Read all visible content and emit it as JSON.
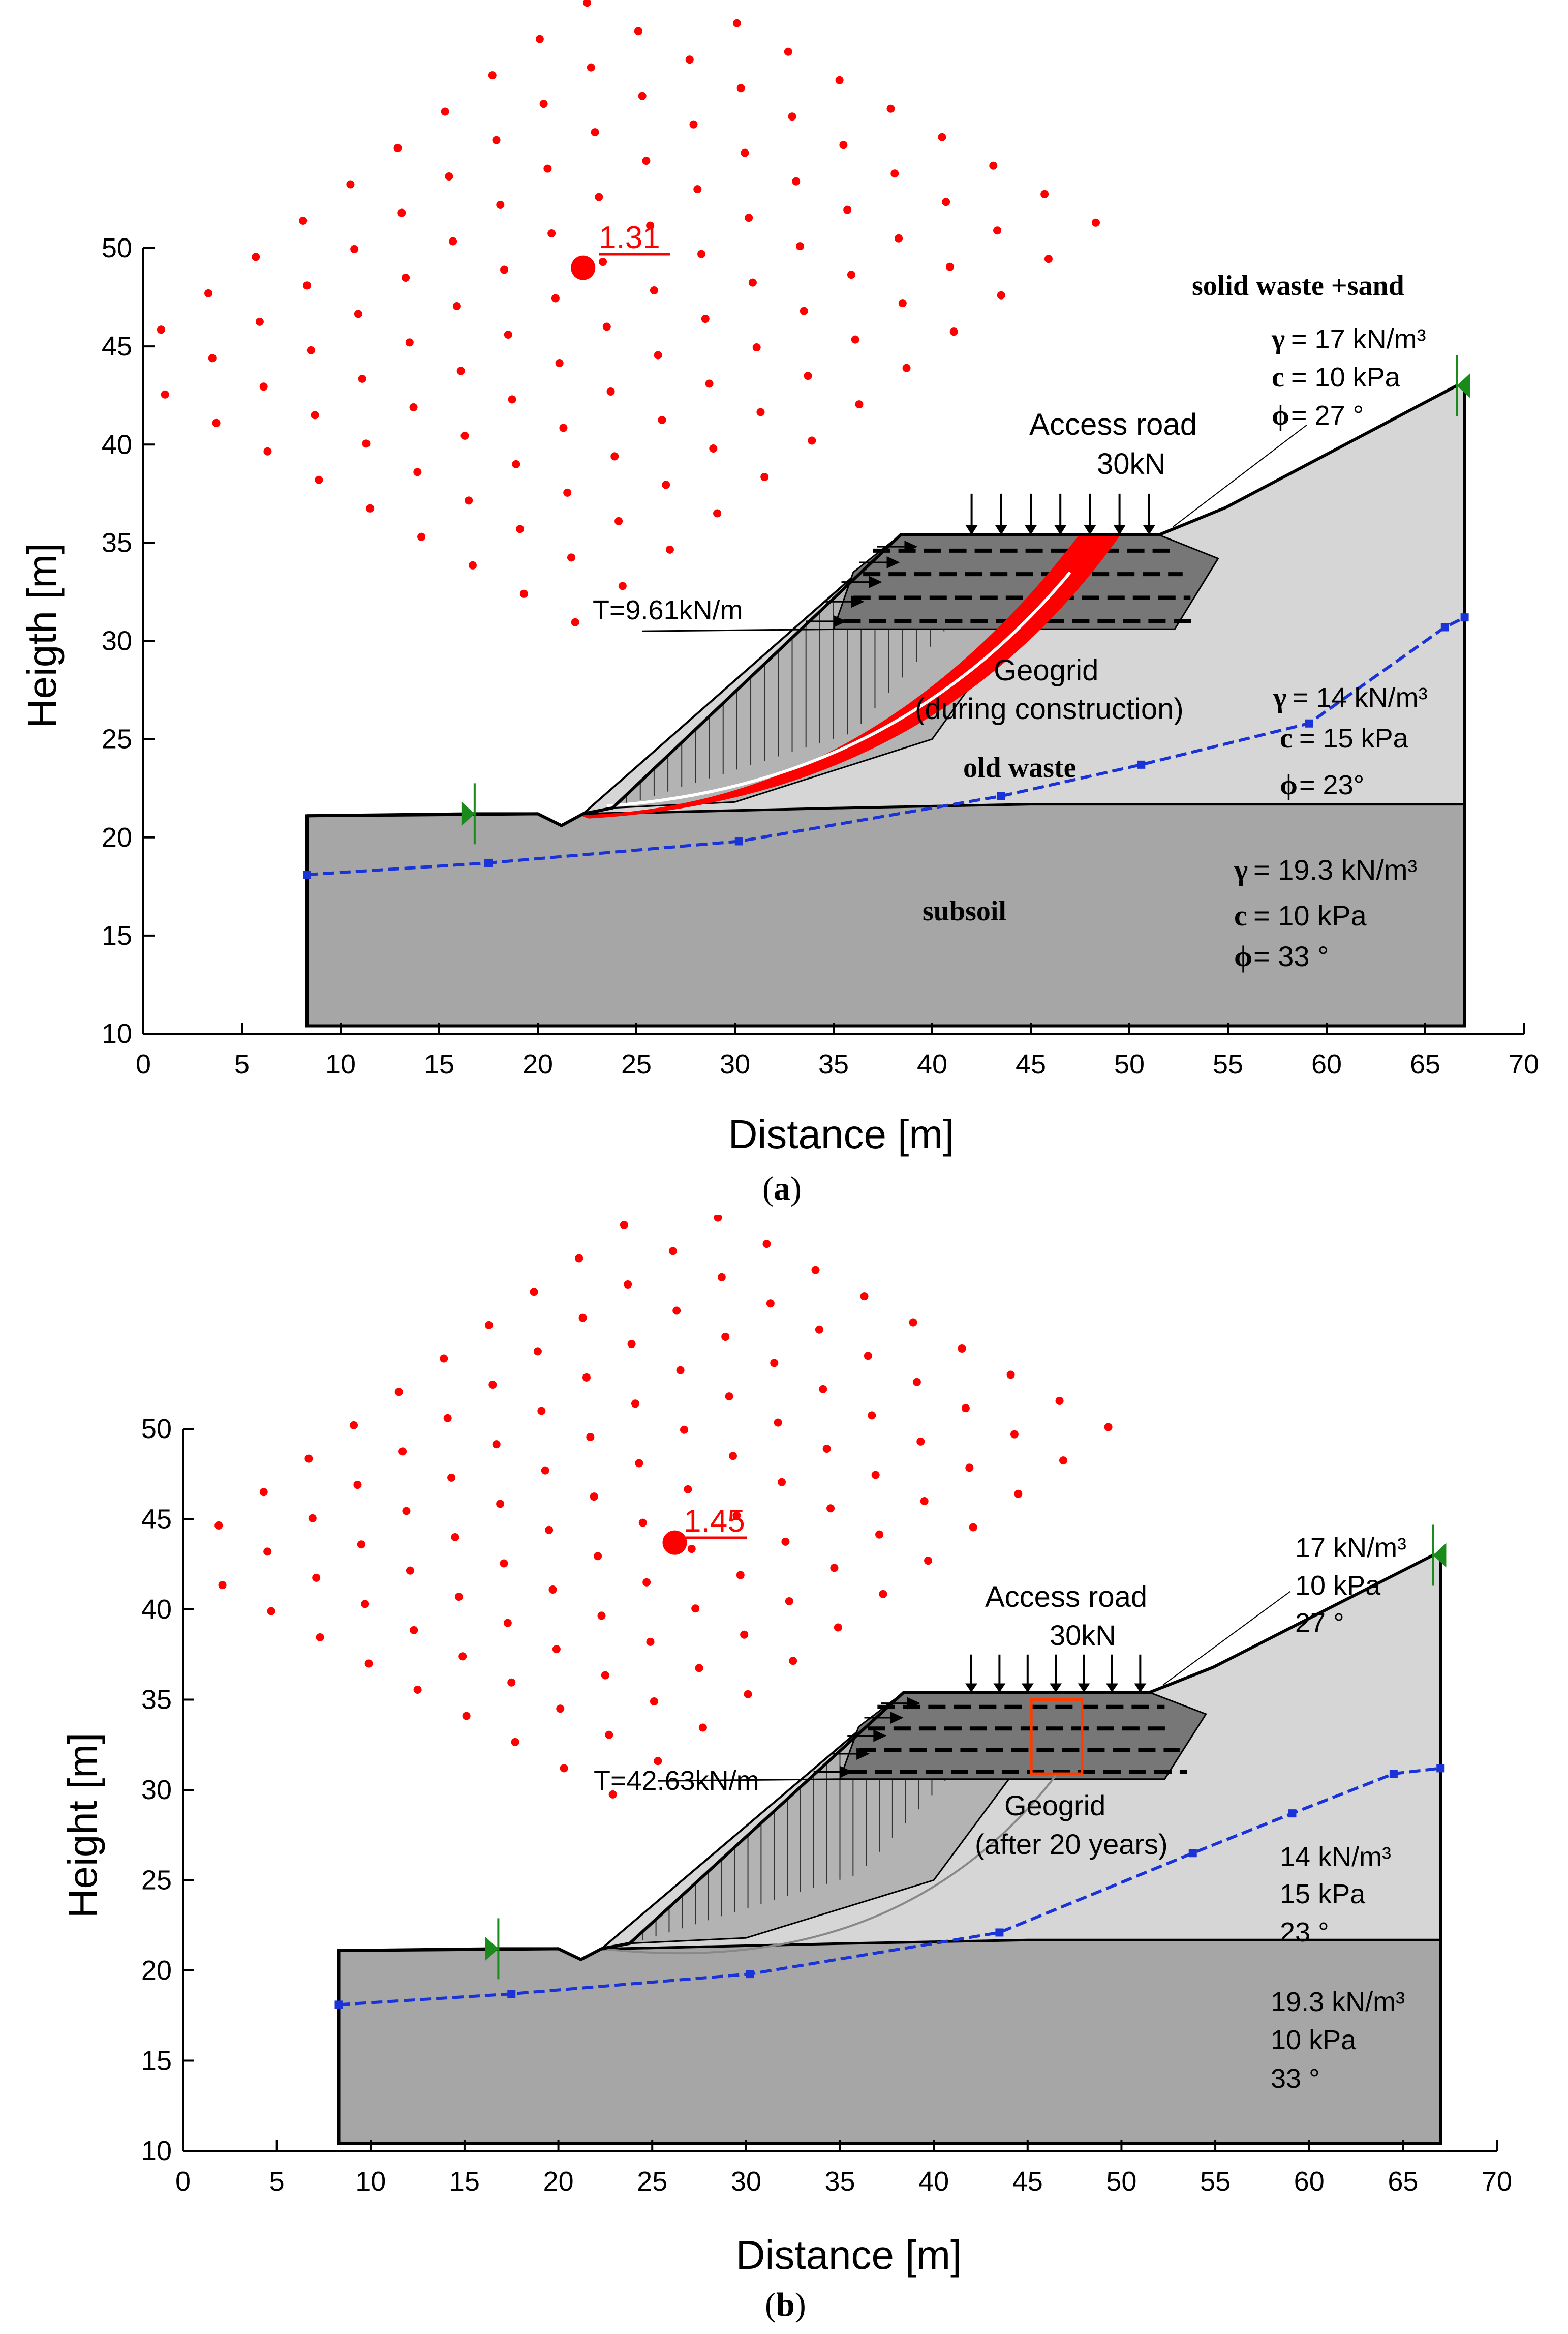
{
  "colors": {
    "grid_point": "#ff0000",
    "slip_fill": "#ff0000",
    "phreatic": "#1a33d9",
    "pin": "#1a8a1a",
    "subsoil": "#a6a6a6",
    "old_waste": "#d6d6d6",
    "solid_waste": "#b3b3b3",
    "reinforced": "#777777",
    "background": "#ffffff"
  },
  "panels": [
    {
      "id": "a",
      "caption": "a",
      "xlabel": "Distance [m]",
      "ylabel": "Heigth [m]",
      "x_ticks": [
        0,
        5,
        10,
        15,
        20,
        25,
        30,
        35,
        40,
        45,
        50,
        55,
        60,
        65,
        70
      ],
      "y_ticks": [
        10,
        15,
        20,
        25,
        30,
        35,
        40,
        45,
        50
      ],
      "factor_of_safety": "1.31",
      "critical_center": [
        22.3,
        49.0
      ],
      "reinforcement_force": "T=9.61kN/m",
      "load_label": "Access road",
      "load_value": "30kN",
      "geogrid_label_1": "Geogrid",
      "geogrid_label_2": "(during construction)",
      "materials": {
        "solid_waste": {
          "name": "solid waste +sand",
          "gamma_sym": "γ",
          "gamma": "= 17 kN/m³",
          "c_sym": "c",
          "c": "= 10 kPa",
          "phi_sym": "ϕ",
          "phi": "= 27 °"
        },
        "old_waste": {
          "name": "old waste",
          "gamma_sym": "γ",
          "gamma": "= 14 kN/m³",
          "c_sym": "c",
          "c": "= 15 kPa",
          "phi_sym": "ϕ",
          "phi": "= 23°"
        },
        "subsoil": {
          "name": "subsoil",
          "gamma_sym": "γ",
          "gamma": "= 19.3 kN/m³",
          "c_sym": "c",
          "c": "= 10 kPa",
          "phi_sym": "ϕ",
          "phi": "= 33 °"
        }
      },
      "phreatic_line": [
        [
          8.3,
          18.1
        ],
        [
          17.5,
          18.7
        ],
        [
          30.2,
          19.8
        ],
        [
          43.5,
          22.1
        ],
        [
          50.6,
          23.7
        ],
        [
          59.1,
          25.8
        ],
        [
          66.0,
          30.7
        ],
        [
          67.0,
          31.2
        ]
      ]
    },
    {
      "id": "b",
      "caption": "b",
      "xlabel": "Distance [m]",
      "ylabel": "Height [m]",
      "x_ticks": [
        0,
        5,
        10,
        15,
        20,
        25,
        30,
        35,
        40,
        45,
        50,
        55,
        60,
        65,
        70
      ],
      "y_ticks": [
        10,
        15,
        20,
        25,
        30,
        35,
        40,
        45,
        50
      ],
      "factor_of_safety": "1.45",
      "critical_center": [
        26.2,
        43.7
      ],
      "reinforcement_force": "T=42.63kN/m",
      "load_label": "Access road",
      "load_value": "30kN",
      "geogrid_label_1": "Geogrid",
      "geogrid_label_2": "(after 20 years)",
      "materials": {
        "solid_waste": {
          "gamma": "17 kN/m³",
          "c": "10 kPa",
          "phi": "27 °"
        },
        "old_waste": {
          "gamma": "14 kN/m³",
          "c": "15 kPa",
          "phi": "23 °"
        },
        "subsoil": {
          "gamma": "19.3 kN/m³",
          "c": "10 kPa",
          "phi": "33 °"
        }
      },
      "phreatic_line": [
        [
          8.3,
          18.1
        ],
        [
          17.5,
          18.7
        ],
        [
          30.2,
          19.8
        ],
        [
          43.5,
          22.1
        ],
        [
          53.8,
          26.5
        ],
        [
          59.1,
          28.7
        ],
        [
          64.5,
          30.9
        ],
        [
          67.0,
          31.2
        ]
      ]
    }
  ]
}
